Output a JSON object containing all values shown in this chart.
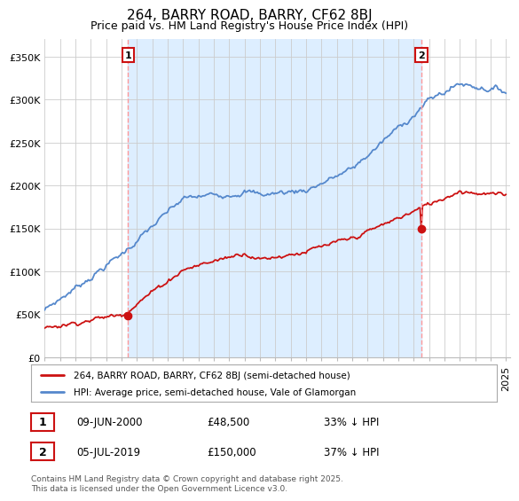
{
  "title": "264, BARRY ROAD, BARRY, CF62 8BJ",
  "subtitle": "Price paid vs. HM Land Registry's House Price Index (HPI)",
  "ylim": [
    0,
    370000
  ],
  "yticks": [
    0,
    50000,
    100000,
    150000,
    200000,
    250000,
    300000,
    350000
  ],
  "ytick_labels": [
    "£0",
    "£50K",
    "£100K",
    "£150K",
    "£200K",
    "£250K",
    "£300K",
    "£350K"
  ],
  "hpi_color": "#5588cc",
  "price_color": "#cc1111",
  "dashed_color": "#ff9999",
  "shade_color": "#ddeeff",
  "marker1_year": 2000.45,
  "marker1_price": 48500,
  "marker1_date_label": "09-JUN-2000",
  "marker1_pct": "33% ↓ HPI",
  "marker2_year": 2019.54,
  "marker2_price": 150000,
  "marker2_date_label": "05-JUL-2019",
  "marker2_pct": "37% ↓ HPI",
  "legend1": "264, BARRY ROAD, BARRY, CF62 8BJ (semi-detached house)",
  "legend2": "HPI: Average price, semi-detached house, Vale of Glamorgan",
  "footer": "Contains HM Land Registry data © Crown copyright and database right 2025.\nThis data is licensed under the Open Government Licence v3.0.",
  "bg_color": "#ffffff",
  "grid_color": "#cccccc",
  "title_fontsize": 11,
  "subtitle_fontsize": 9,
  "tick_fontsize": 8
}
